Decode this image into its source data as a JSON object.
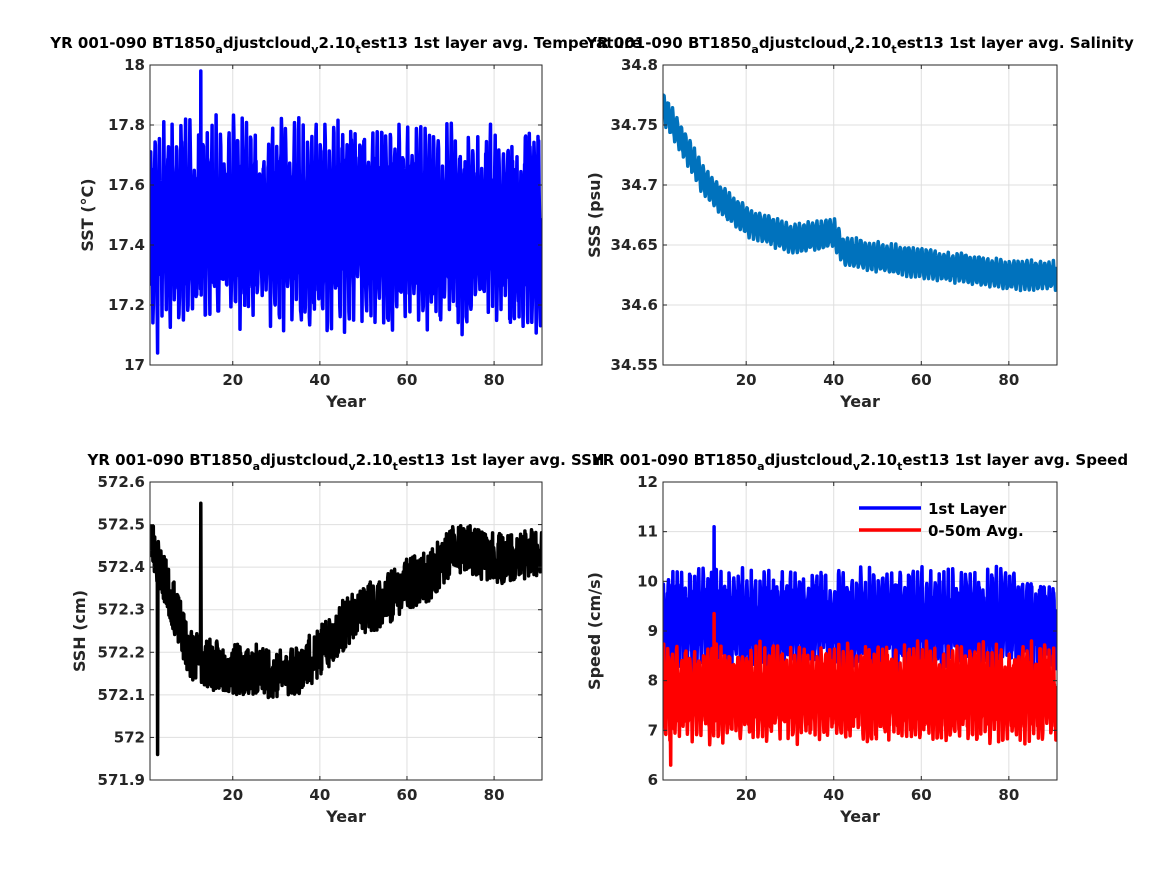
{
  "chart_data": [
    {
      "type": "line",
      "title": {
        "prefix": "YR 001-090 BT1850",
        "s1": "a",
        "m1": "djustcloud",
        "s2": "v",
        "m2": "2.10",
        "s3": "t",
        "suffix": "est13 1st layer avg. Temperature"
      },
      "xlabel": "Year",
      "ylabel": "SST (°C)",
      "xlim": [
        1,
        91
      ],
      "ylim": [
        17,
        18
      ],
      "xticks": [
        20,
        40,
        60,
        80
      ],
      "yticks": [
        17,
        17.2,
        17.4,
        17.6,
        17.8,
        18
      ],
      "ytick_labels": [
        "17",
        "17.2",
        "17.4",
        "17.6",
        "17.8",
        "18"
      ],
      "grid": true,
      "series": [
        {
          "color": "#0000ff",
          "line_width": 3.5,
          "kind": "seasonal",
          "mean": [
            [
              1,
              17.48
            ],
            [
              91,
              17.45
            ]
          ],
          "amplitude": 0.26,
          "noise": 0.1,
          "seed": 11,
          "extremes": {
            "max": 17.98,
            "min": 17.04
          }
        }
      ]
    },
    {
      "type": "line",
      "title": {
        "prefix": "YR 001-090 BT1850",
        "s1": "a",
        "m1": "djustcloud",
        "s2": "v",
        "m2": "2.10",
        "s3": "t",
        "suffix": "est13 1st layer avg. Salinity"
      },
      "xlabel": "Year",
      "ylabel": "SSS (psu)",
      "xlim": [
        1,
        91
      ],
      "ylim": [
        34.55,
        34.8
      ],
      "xticks": [
        20,
        40,
        60,
        80
      ],
      "yticks": [
        34.55,
        34.6,
        34.65,
        34.7,
        34.75,
        34.8
      ],
      "ytick_labels": [
        "34.55",
        "34.6",
        "34.65",
        "34.7",
        "34.75",
        "34.8"
      ],
      "grid": true,
      "series": [
        {
          "color": "#0072bd",
          "line_width": 3.5,
          "kind": "seasonal",
          "mean": [
            [
              1,
              34.765
            ],
            [
              5,
              34.74
            ],
            [
              10,
              34.705
            ],
            [
              15,
              34.685
            ],
            [
              20,
              34.67
            ],
            [
              30,
              34.655
            ],
            [
              40,
              34.66
            ],
            [
              42,
              34.645
            ],
            [
              50,
              34.64
            ],
            [
              60,
              34.635
            ],
            [
              70,
              34.63
            ],
            [
              80,
              34.625
            ],
            [
              91,
              34.625
            ]
          ],
          "amplitude": 0.011,
          "noise": 0.002,
          "seed": 5
        }
      ]
    },
    {
      "type": "line",
      "title": {
        "prefix": "YR 001-090 BT1850",
        "s1": "a",
        "m1": "djustcloud",
        "s2": "v",
        "m2": "2.10",
        "s3": "t",
        "suffix": "est13 1st layer avg. SSH"
      },
      "xlabel": "Year",
      "ylabel": "SSH (cm)",
      "xlim": [
        1,
        91
      ],
      "ylim": [
        571.9,
        572.6
      ],
      "xticks": [
        20,
        40,
        60,
        80
      ],
      "yticks": [
        571.9,
        572,
        572.1,
        572.2,
        572.3,
        572.4,
        572.5,
        572.6
      ],
      "ytick_labels": [
        "571.9",
        "572",
        "572.1",
        "572.2",
        "572.3",
        "572.4",
        "572.5",
        "572.6"
      ],
      "grid": true,
      "series": [
        {
          "color": "#000000",
          "line_width": 3.5,
          "kind": "noisy",
          "mean": [
            [
              1,
              572.47
            ],
            [
              5,
              572.35
            ],
            [
              10,
              572.2
            ],
            [
              15,
              572.17
            ],
            [
              20,
              572.16
            ],
            [
              25,
              572.16
            ],
            [
              30,
              572.15
            ],
            [
              35,
              572.16
            ],
            [
              40,
              572.2
            ],
            [
              45,
              572.26
            ],
            [
              50,
              572.3
            ],
            [
              55,
              572.32
            ],
            [
              60,
              572.36
            ],
            [
              65,
              572.38
            ],
            [
              70,
              572.44
            ],
            [
              75,
              572.44
            ],
            [
              80,
              572.42
            ],
            [
              85,
              572.42
            ],
            [
              91,
              572.44
            ]
          ],
          "amplitude": 0.0,
          "noise": 0.06,
          "seed": 23,
          "extremes": {
            "max": 572.55,
            "min": 571.96
          }
        }
      ]
    },
    {
      "type": "line",
      "title": {
        "prefix": "YR 001-090 BT1850",
        "s1": "a",
        "m1": "djustcloud",
        "s2": "v",
        "m2": "2.10",
        "s3": "t",
        "suffix": "est13 1st layer avg. Speed"
      },
      "xlabel": "Year",
      "ylabel": "Speed (cm/s)",
      "xlim": [
        1,
        91
      ],
      "ylim": [
        6,
        12
      ],
      "xticks": [
        20,
        40,
        60,
        80
      ],
      "yticks": [
        6,
        7,
        8,
        9,
        10,
        11,
        12
      ],
      "ytick_labels": [
        "6",
        "7",
        "8",
        "9",
        "10",
        "11",
        "12"
      ],
      "grid": true,
      "legend": {
        "position": "top-right"
      },
      "series": [
        {
          "name": "1st Layer",
          "color": "#0000ff",
          "line_width": 3.5,
          "kind": "seasonal",
          "mean": [
            [
              1,
              9.2
            ],
            [
              91,
              9.2
            ]
          ],
          "amplitude": 0.75,
          "noise": 0.35,
          "seed": 37,
          "extremes": {
            "max": 11.1,
            "min": 8.0
          }
        },
        {
          "name": "0-50m Avg.",
          "color": "#ff0000",
          "line_width": 3.5,
          "kind": "seasonal",
          "mean": [
            [
              1,
              7.75
            ],
            [
              91,
              7.75
            ]
          ],
          "amplitude": 0.75,
          "noise": 0.3,
          "seed": 41,
          "extremes": {
            "max": 9.35,
            "min": 6.3
          }
        }
      ]
    }
  ]
}
